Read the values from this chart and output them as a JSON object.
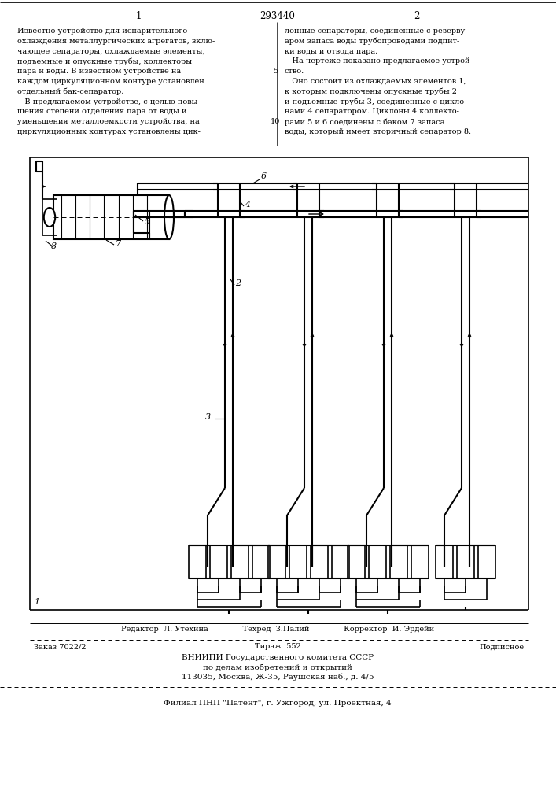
{
  "page_width": 7.07,
  "page_height": 10.0,
  "bg_color": "#ffffff",
  "text_color": "#000000",
  "patent_number": "293440",
  "col1_lines": [
    "Известно устройство для испарительного",
    "охлаждения металлургических агрегатов, вклю-",
    "чающее сепараторы, охлаждаемые элементы,",
    "подъемные и опускные трубы, коллекторы",
    "пара и воды. В известном устройстве на",
    "каждом циркуляционном контуре установлен",
    "отдельный бак-сепаратор.",
    "   В предлагаемом устройстве, с целью повы-",
    "шения степени отделения пара от воды и",
    "уменьшения металлоемкости устройства, на",
    "циркуляционных контурах установлены цик-"
  ],
  "col2_lines": [
    "лонные сепараторы, соединенные с резерву-",
    "аром запаса воды трубопроводами подпит-",
    "ки воды и отвода пара.",
    "   На чертеже показано предлагаемое устрой-",
    "ство.",
    "   Оно состоит из охлаждаемых элементов 1,",
    "к которым подключены опускные трубы 2",
    "и подъемные трубы 3, соединенные с цикло-",
    "нами 4 сепаратором. Циклоны 4 коллекто-",
    "рами 5 и 6 соединены с баком 7 запаса",
    "воды, который имеет вторичный сепаратор 8."
  ],
  "editor_line": "Редактор  Л. Утехина              Техред  З.Палий              Корректор  И. Эрдейи",
  "order_left": "Заказ 7022/2",
  "order_mid": "Тираж  552",
  "order_right": "Подписное",
  "org_line1": "ВНИИПИ Государственного комитета СССР",
  "org_line2": "по делам изобретений и открытий",
  "org_line3": "113035, Москва, Ж-35, Раушская наб., д. 4/5",
  "branch_line": "Филиал ПНП \"Патент\", г. Ужгород, ул. Проектная, 4"
}
